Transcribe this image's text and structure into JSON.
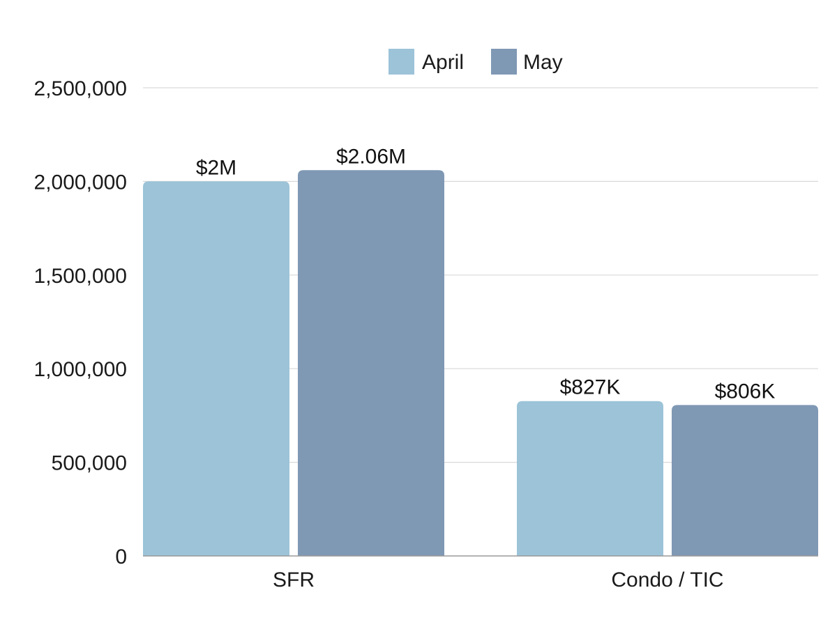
{
  "chart_data": {
    "type": "bar",
    "title": "",
    "xlabel": "",
    "ylabel": "",
    "categories": [
      "SFR",
      "Condo / TIC"
    ],
    "series": [
      {
        "name": "April",
        "color": "#9cc3d8",
        "values": [
          2000000,
          827000
        ],
        "labels": [
          "$2M",
          "$827K"
        ]
      },
      {
        "name": "May",
        "color": "#7f98b4",
        "values": [
          2060000,
          806000
        ],
        "labels": [
          "$2.06M",
          "$806K"
        ]
      }
    ],
    "ylim": [
      0,
      2500000
    ],
    "yticks": [
      0,
      500000,
      1000000,
      1500000,
      2000000,
      2500000
    ],
    "ytick_labels": [
      "0",
      "500,000",
      "1,000,000",
      "1,500,000",
      "2,000,000",
      "2,500,000"
    ],
    "grid": true,
    "legend_position": "top-center"
  }
}
